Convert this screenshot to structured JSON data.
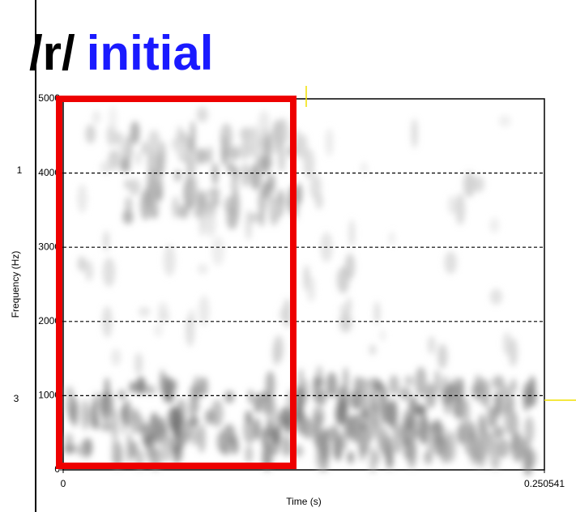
{
  "chart_data": {
    "type": "spectrogram",
    "title_parts": [
      {
        "text": "/r/",
        "color": "#000000"
      },
      {
        "text": "initial",
        "color": "#1a1aff"
      }
    ],
    "x_label": "Time (s)",
    "y_label": "Frequency (Hz)",
    "xlim": [
      0,
      0.250541
    ],
    "xticks": [
      0,
      0.250541
    ],
    "ylim": [
      0,
      5000
    ],
    "yticks": [
      0,
      1000,
      2000,
      3000,
      4000,
      5000
    ],
    "grid": true,
    "annotations": [
      "1",
      "3"
    ],
    "highlight_color": "#ee0000"
  }
}
